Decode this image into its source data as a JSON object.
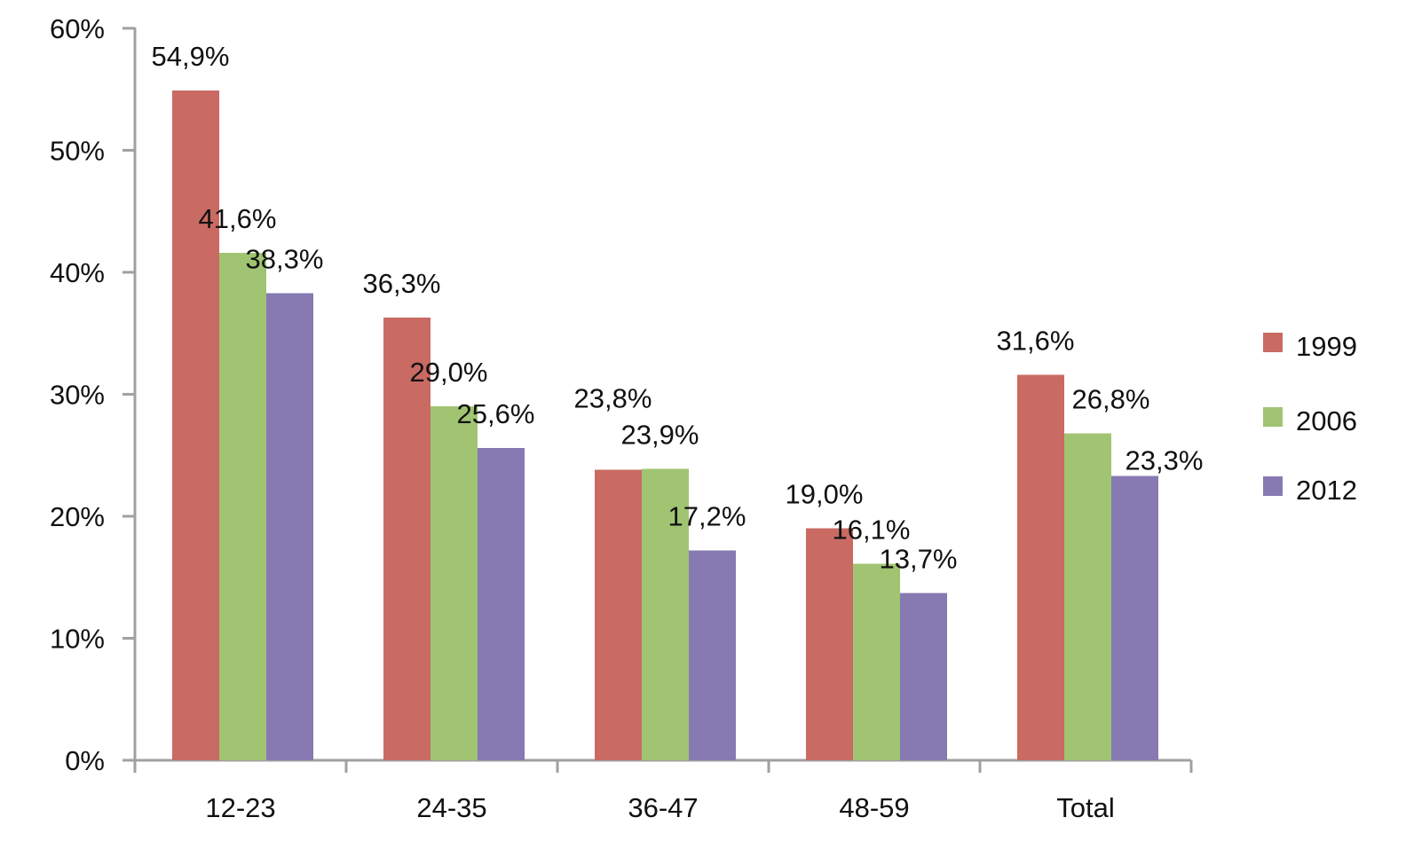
{
  "chart_data": {
    "type": "bar",
    "title": "",
    "xlabel": "",
    "ylabel": "",
    "categories": [
      "12-23",
      "24-35",
      "36-47",
      "48-59",
      "Total"
    ],
    "series": [
      {
        "name": "1999",
        "color": "#c96a63",
        "values": [
          54.9,
          36.3,
          23.8,
          19.0,
          31.6
        ],
        "labels": [
          "54,9%",
          "36,3%",
          "23,8%",
          "19,0%",
          "31,6%"
        ]
      },
      {
        "name": "2006",
        "color": "#a0c472",
        "values": [
          41.6,
          29.0,
          23.9,
          16.1,
          26.8
        ],
        "labels": [
          "41,6%",
          "29,0%",
          "23,9%",
          "16,1%",
          "26,8%"
        ]
      },
      {
        "name": "2012",
        "color": "#8779b1",
        "values": [
          38.3,
          25.6,
          17.2,
          13.7,
          23.3
        ],
        "labels": [
          "38,3%",
          "25,6%",
          "17,2%",
          "13,7%",
          "23,3%"
        ]
      }
    ],
    "y_axis": {
      "min": 0,
      "max": 60,
      "step": 10,
      "ticks": [
        "0%",
        "10%",
        "20%",
        "30%",
        "40%",
        "50%",
        "60%"
      ]
    },
    "legend": {
      "position": "right",
      "items": [
        "1999",
        "2006",
        "2012"
      ]
    },
    "grid": false,
    "axis_color": "#a0a0a0",
    "text_color": "#111111",
    "background_color": "#ffffff"
  }
}
